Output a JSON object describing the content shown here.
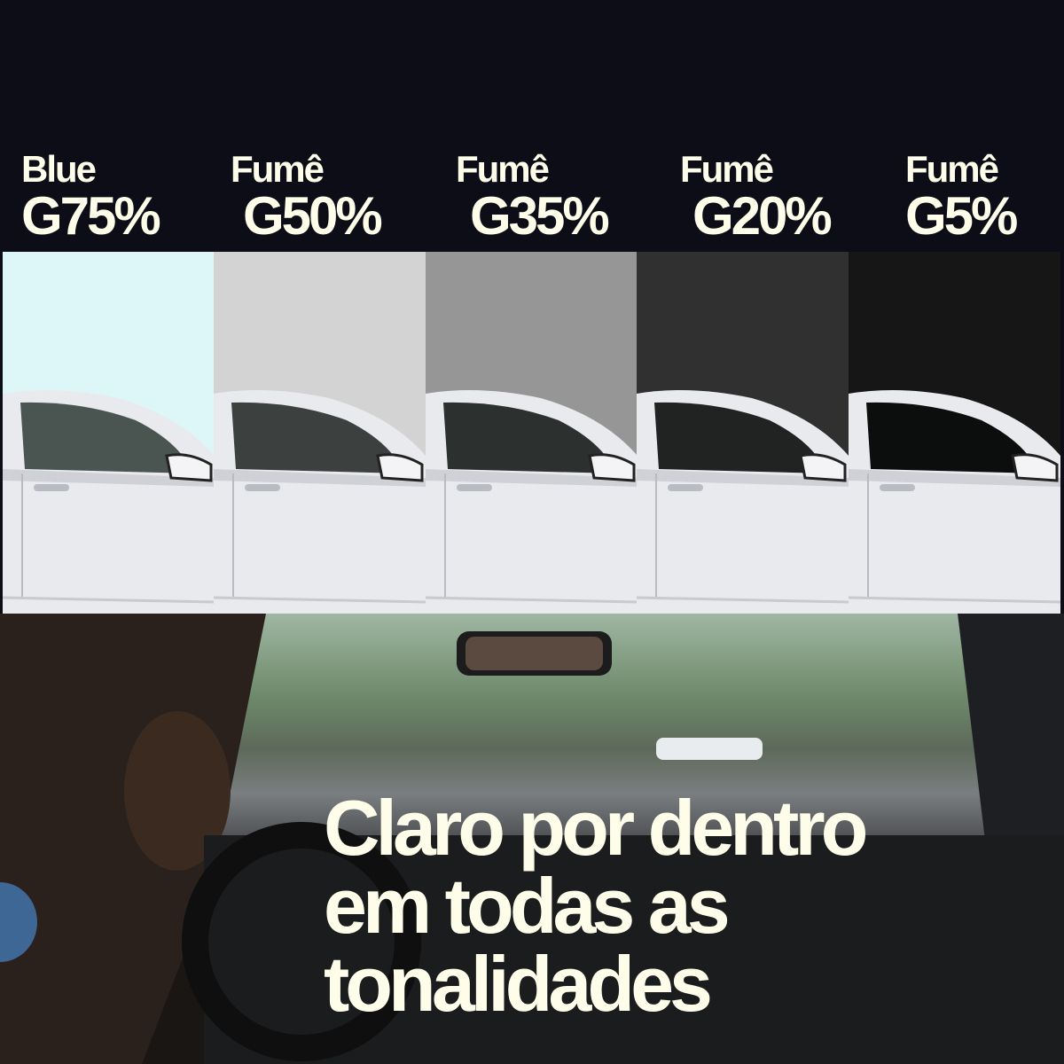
{
  "tints": [
    {
      "line1": "Blue",
      "line2": "G75%",
      "color": "#ddf7f9",
      "glass": "#4a5552"
    },
    {
      "line1": "Fumê",
      "line2": "G50%",
      "color": "#d3d3d3",
      "glass": "#3c403e"
    },
    {
      "line1": "Fumê",
      "line2": "G35%",
      "color": "#969696",
      "glass": "#2c302e"
    },
    {
      "line1": "Fumê",
      "line2": "G20%",
      "color": "#303030",
      "glass": "#202322"
    },
    {
      "line1": "Fumê",
      "line2": "G5%",
      "color": "#161616",
      "glass": "#0c0d0d"
    }
  ],
  "headline": {
    "line1": "Claro por dentro",
    "line2": "em todas as",
    "line3": "tonalidades"
  },
  "colors": {
    "background": "#0c0d16",
    "text": "#fdfde9",
    "accent_dot": "#3f6796"
  }
}
